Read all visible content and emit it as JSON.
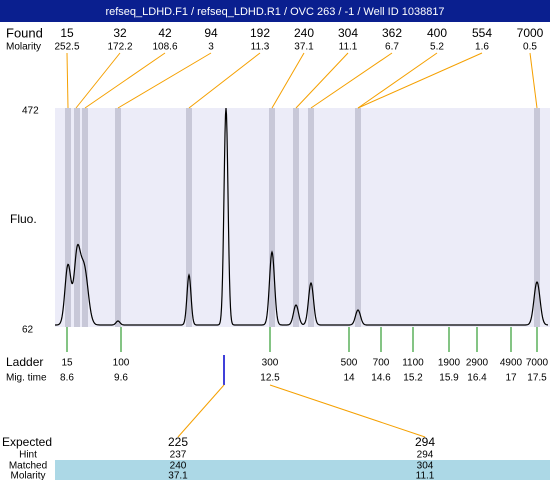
{
  "header": {
    "title": "refseq_LDHD.F1 / refseq_LDHD.R1 / OVC 263 / -1 / Well ID 1038817"
  },
  "found": {
    "label": "Found",
    "values": [
      "15",
      "32",
      "42",
      "94",
      "192",
      "240",
      "304",
      "362",
      "400",
      "554",
      "7000"
    ],
    "molarity_label": "Molarity",
    "molarity": [
      "252.5",
      "172.2",
      "108.6",
      "3",
      "11.3",
      "37.1",
      "11.1",
      "6.7",
      "5.2",
      "1.6",
      "0.5"
    ]
  },
  "plot": {
    "y_top": "472",
    "y_bottom": "62",
    "y_label": "Fluo."
  },
  "ladder": {
    "label": "Ladder",
    "sizes": [
      "15",
      "100",
      "300",
      "500",
      "700",
      "1100",
      "1900",
      "2900",
      "4900",
      "7000"
    ],
    "time_label": "Mig. time",
    "times": [
      "8.6",
      "9.6",
      "12.5",
      "14",
      "14.6",
      "15.2",
      "15.9",
      "16.4",
      "17",
      "17.5"
    ]
  },
  "expected": {
    "row_labels": [
      "Expected",
      "Hint",
      "Matched",
      "Molarity"
    ],
    "columns": [
      [
        "225",
        "237",
        "240",
        "37.1"
      ],
      [
        "294",
        "294",
        "304",
        "11.1"
      ]
    ]
  }
}
